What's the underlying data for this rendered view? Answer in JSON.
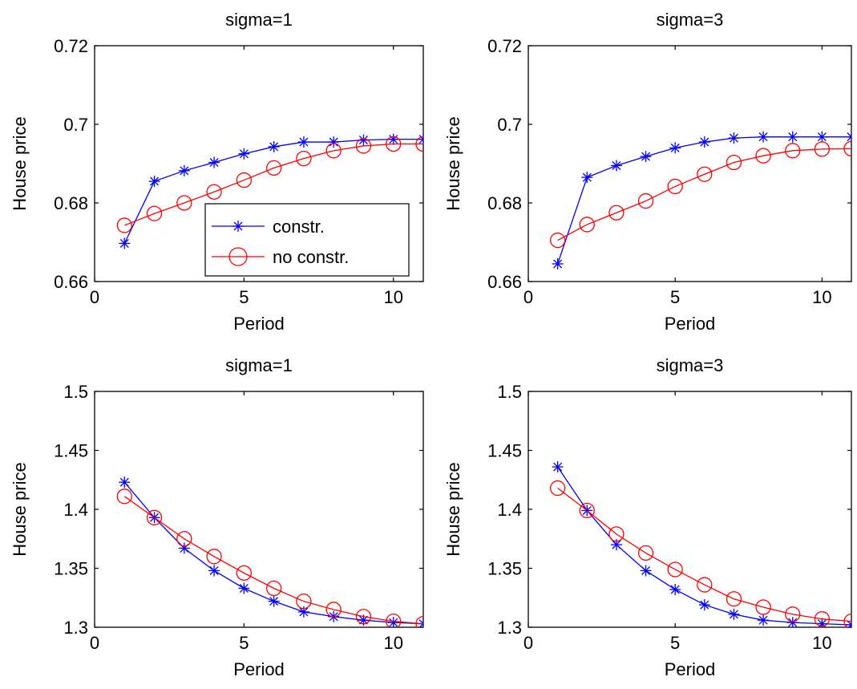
{
  "colors": {
    "background": "#ffffff",
    "axes": "#000000",
    "constr": "#0000ff",
    "no_constr": "#ff0000"
  },
  "chart_data": [
    {
      "type": "line",
      "title": "sigma=1",
      "xlabel": "Period",
      "ylabel": "House price",
      "xlim": [
        0,
        11
      ],
      "ylim": [
        0.66,
        0.72
      ],
      "xticks": [
        0,
        5,
        10
      ],
      "yticks": [
        0.66,
        0.68,
        0.7,
        0.72
      ],
      "ytick_labels": [
        "0.66",
        "0.68",
        "0.7",
        "0.72"
      ],
      "grid": false,
      "legend": {
        "position": "bottom-right",
        "entries": [
          "constr.",
          "no constr."
        ]
      },
      "x": [
        1,
        2,
        3,
        4,
        5,
        6,
        7,
        8,
        9,
        10,
        11
      ],
      "series": [
        {
          "name": "constr.",
          "marker": "asterisk",
          "color": "#0000ff",
          "values": [
            0.6697,
            0.6855,
            0.6882,
            0.6903,
            0.6925,
            0.6943,
            0.6955,
            0.6955,
            0.696,
            0.6962,
            0.6962
          ]
        },
        {
          "name": "no constr.",
          "marker": "circle",
          "color": "#ff0000",
          "values": [
            0.6743,
            0.6773,
            0.68,
            0.6828,
            0.6858,
            0.6889,
            0.6913,
            0.6933,
            0.6945,
            0.695,
            0.695
          ]
        }
      ]
    },
    {
      "type": "line",
      "title": "sigma=3",
      "xlabel": "Period",
      "ylabel": "House price",
      "xlim": [
        0,
        11
      ],
      "ylim": [
        0.66,
        0.72
      ],
      "xticks": [
        0,
        5,
        10
      ],
      "yticks": [
        0.66,
        0.68,
        0.7,
        0.72
      ],
      "ytick_labels": [
        "0.66",
        "0.68",
        "0.7",
        "0.72"
      ],
      "grid": false,
      "x": [
        1,
        2,
        3,
        4,
        5,
        6,
        7,
        8,
        9,
        10,
        11
      ],
      "series": [
        {
          "name": "constr.",
          "marker": "asterisk",
          "color": "#0000ff",
          "values": [
            0.6645,
            0.6865,
            0.6895,
            0.6918,
            0.694,
            0.6955,
            0.6965,
            0.6968,
            0.6968,
            0.6968,
            0.6968
          ]
        },
        {
          "name": "no constr.",
          "marker": "circle",
          "color": "#ff0000",
          "values": [
            0.6705,
            0.6745,
            0.6775,
            0.6805,
            0.6842,
            0.6873,
            0.6903,
            0.692,
            0.6933,
            0.6937,
            0.6938
          ]
        }
      ]
    },
    {
      "type": "line",
      "title": "sigma=1",
      "xlabel": "Period",
      "ylabel": "House price",
      "xlim": [
        0,
        11
      ],
      "ylim": [
        1.3,
        1.5
      ],
      "xticks": [
        0,
        5,
        10
      ],
      "yticks": [
        1.3,
        1.35,
        1.4,
        1.45,
        1.5
      ],
      "ytick_labels": [
        "1.3",
        "1.35",
        "1.4",
        "1.45",
        "1.5"
      ],
      "grid": false,
      "x": [
        1,
        2,
        3,
        4,
        5,
        6,
        7,
        8,
        9,
        10,
        11
      ],
      "series": [
        {
          "name": "constr.",
          "marker": "asterisk",
          "color": "#0000ff",
          "values": [
            1.423,
            1.393,
            1.367,
            1.348,
            1.333,
            1.322,
            1.313,
            1.309,
            1.306,
            1.304,
            1.303
          ]
        },
        {
          "name": "no constr.",
          "marker": "circle",
          "color": "#ff0000",
          "values": [
            1.411,
            1.393,
            1.375,
            1.36,
            1.346,
            1.333,
            1.322,
            1.315,
            1.309,
            1.305,
            1.303
          ]
        }
      ]
    },
    {
      "type": "line",
      "title": "sigma=3",
      "xlabel": "Period",
      "ylabel": "House price",
      "xlim": [
        0,
        11
      ],
      "ylim": [
        1.3,
        1.5
      ],
      "xticks": [
        0,
        5,
        10
      ],
      "yticks": [
        1.3,
        1.35,
        1.4,
        1.45,
        1.5
      ],
      "ytick_labels": [
        "1.3",
        "1.35",
        "1.4",
        "1.45",
        "1.5"
      ],
      "grid": false,
      "x": [
        1,
        2,
        3,
        4,
        5,
        6,
        7,
        8,
        9,
        10,
        11
      ],
      "series": [
        {
          "name": "constr.",
          "marker": "asterisk",
          "color": "#0000ff",
          "values": [
            1.436,
            1.399,
            1.37,
            1.348,
            1.332,
            1.319,
            1.311,
            1.306,
            1.304,
            1.303,
            1.302
          ]
        },
        {
          "name": "no constr.",
          "marker": "circle",
          "color": "#ff0000",
          "values": [
            1.418,
            1.399,
            1.379,
            1.363,
            1.349,
            1.336,
            1.324,
            1.317,
            1.311,
            1.307,
            1.305
          ]
        }
      ]
    }
  ]
}
